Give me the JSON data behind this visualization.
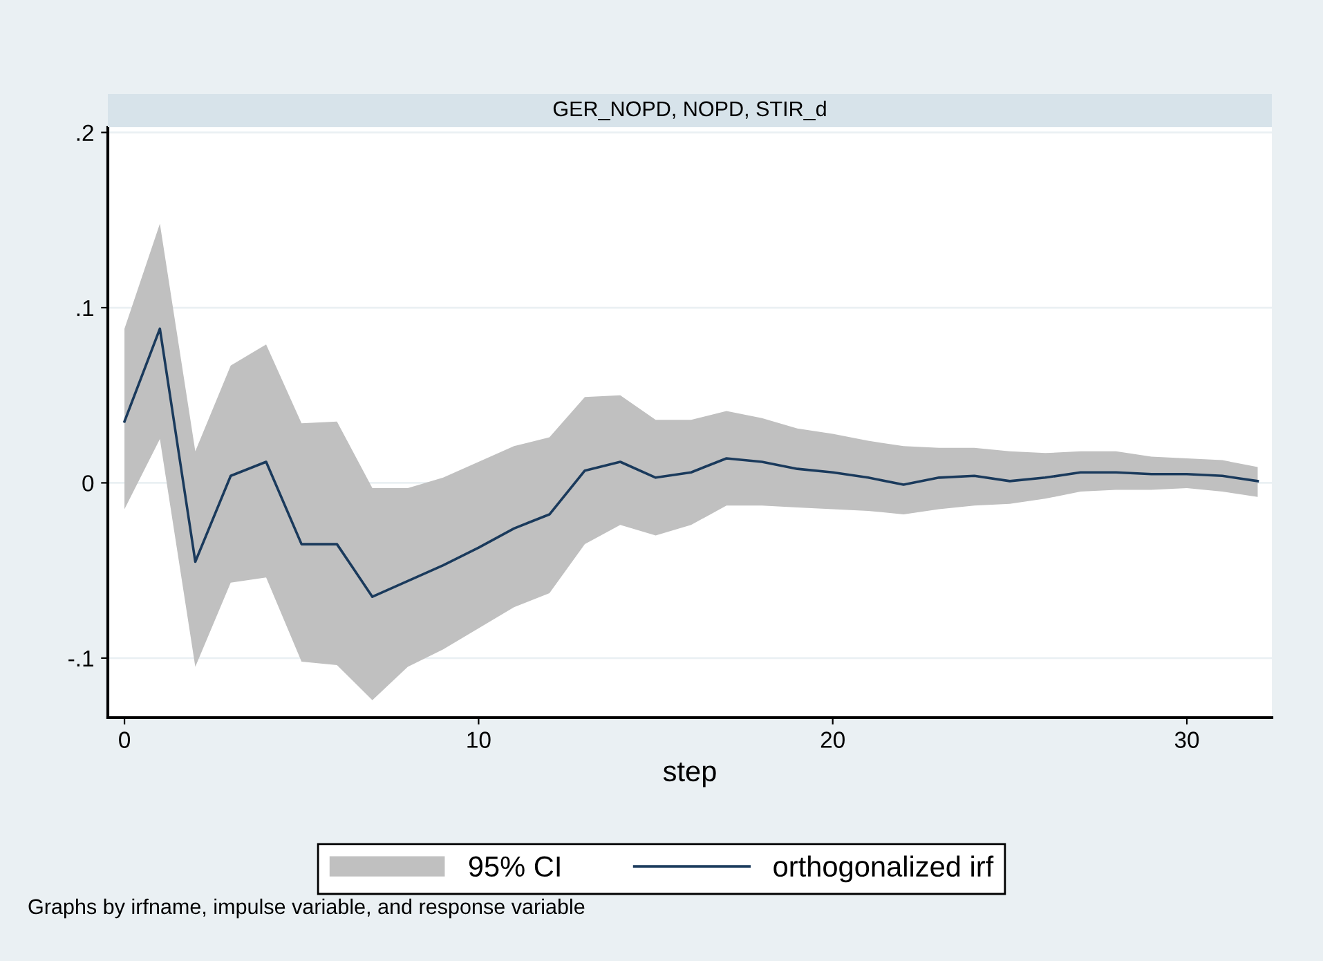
{
  "chart_data": {
    "type": "line",
    "title": "GER_NOPD, NOPD, STIR_d",
    "xlabel": "step",
    "x": [
      0,
      1,
      2,
      3,
      4,
      5,
      6,
      7,
      8,
      9,
      10,
      11,
      12,
      13,
      14,
      15,
      16,
      17,
      18,
      19,
      20,
      21,
      22,
      23,
      24,
      25,
      26,
      27,
      28,
      29,
      30,
      31,
      32
    ],
    "series": [
      {
        "name": "orthogonalized irf",
        "color": "#1a3a5c",
        "values": [
          0.035,
          0.088,
          -0.045,
          0.004,
          0.012,
          -0.035,
          -0.035,
          -0.065,
          -0.056,
          -0.047,
          -0.037,
          -0.026,
          -0.018,
          0.007,
          0.012,
          0.003,
          0.006,
          0.014,
          0.012,
          0.008,
          0.006,
          0.003,
          -0.001,
          0.003,
          0.004,
          0.001,
          0.003,
          0.006,
          0.006,
          0.005,
          0.005,
          0.004,
          0.001
        ],
        "lower": [
          -0.015,
          0.025,
          -0.105,
          -0.057,
          -0.054,
          -0.102,
          -0.104,
          -0.124,
          -0.105,
          -0.095,
          -0.083,
          -0.071,
          -0.063,
          -0.035,
          -0.024,
          -0.03,
          -0.024,
          -0.013,
          -0.013,
          -0.014,
          -0.015,
          -0.016,
          -0.018,
          -0.015,
          -0.013,
          -0.012,
          -0.009,
          -0.005,
          -0.004,
          -0.004,
          -0.003,
          -0.005,
          -0.008
        ],
        "upper": [
          0.088,
          0.148,
          0.018,
          0.067,
          0.079,
          0.034,
          0.035,
          -0.003,
          -0.003,
          0.003,
          0.012,
          0.021,
          0.026,
          0.049,
          0.05,
          0.036,
          0.036,
          0.041,
          0.037,
          0.031,
          0.028,
          0.024,
          0.021,
          0.02,
          0.02,
          0.018,
          0.017,
          0.018,
          0.018,
          0.015,
          0.014,
          0.013,
          0.009
        ]
      }
    ],
    "xlim": [
      -0.47,
      32.4
    ],
    "ylim": [
      -0.134,
      0.203
    ],
    "xticks": [
      0,
      10,
      20,
      30
    ],
    "yticks": [
      {
        "value": -0.1,
        "label": "-.1"
      },
      0,
      {
        "value": 0.1,
        "label": ".1"
      },
      {
        "value": 0.2,
        "label": ".2"
      }
    ],
    "grid": "y",
    "legend": "bottom",
    "line_style": "solid",
    "marker": "none",
    "annotations": [
      "95% CI",
      "Graphs by irfname, impulse variable, and response variable"
    ]
  }
}
